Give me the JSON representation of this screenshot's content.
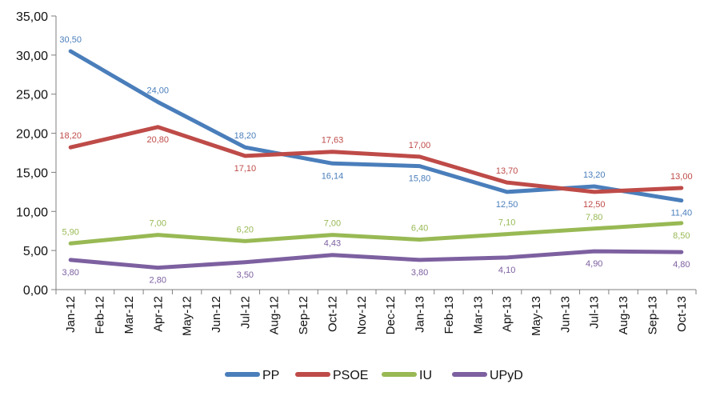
{
  "chart_data": {
    "type": "line",
    "title": "",
    "xlabel": "",
    "ylabel": "",
    "ylim": [
      0,
      35
    ],
    "yticks": [
      "0,00",
      "5,00",
      "10,00",
      "15,00",
      "20,00",
      "25,00",
      "30,00",
      "35,00"
    ],
    "grid": false,
    "legend_position": "bottom",
    "categories": [
      "Jan-12",
      "Feb-12",
      "Mar-12",
      "Apr-12",
      "May-12",
      "Jun-12",
      "Jul-12",
      "Aug-12",
      "Sep-12",
      "Oct-12",
      "Nov-12",
      "Dec-12",
      "Jan-13",
      "Feb-13",
      "Mar-13",
      "Apr-13",
      "May-13",
      "Jun-13",
      "Jul-13",
      "Aug-13",
      "Sep-13",
      "Oct-13"
    ],
    "series": [
      {
        "name": "PP",
        "color": "#4a7ebb",
        "points": [
          {
            "i": 0,
            "v": 30.5,
            "label": "30,50",
            "pos": "above"
          },
          {
            "i": 3,
            "v": 24.0,
            "label": "24,00",
            "pos": "above"
          },
          {
            "i": 6,
            "v": 18.2,
            "label": "18,20",
            "pos": "above"
          },
          {
            "i": 9,
            "v": 16.14,
            "label": "16,14",
            "pos": "below"
          },
          {
            "i": 12,
            "v": 15.8,
            "label": "15,80",
            "pos": "below"
          },
          {
            "i": 15,
            "v": 12.5,
            "label": "12,50",
            "pos": "below"
          },
          {
            "i": 18,
            "v": 13.2,
            "label": "13,20",
            "pos": "above"
          },
          {
            "i": 21,
            "v": 11.4,
            "label": "11,40",
            "pos": "below"
          }
        ]
      },
      {
        "name": "PSOE",
        "color": "#be4b48",
        "points": [
          {
            "i": 0,
            "v": 18.2,
            "label": "18,20",
            "pos": "above"
          },
          {
            "i": 3,
            "v": 20.8,
            "label": "20,80",
            "pos": "below"
          },
          {
            "i": 6,
            "v": 17.1,
            "label": "17,10",
            "pos": "below"
          },
          {
            "i": 9,
            "v": 17.63,
            "label": "17,63",
            "pos": "above"
          },
          {
            "i": 12,
            "v": 17.0,
            "label": "17,00",
            "pos": "above"
          },
          {
            "i": 15,
            "v": 13.7,
            "label": "13,70",
            "pos": "above"
          },
          {
            "i": 18,
            "v": 12.5,
            "label": "12,50",
            "pos": "below"
          },
          {
            "i": 21,
            "v": 13.0,
            "label": "13,00",
            "pos": "above"
          }
        ]
      },
      {
        "name": "IU",
        "color": "#98b954",
        "points": [
          {
            "i": 0,
            "v": 5.9,
            "label": "5,90",
            "pos": "above"
          },
          {
            "i": 3,
            "v": 7.0,
            "label": "7,00",
            "pos": "above"
          },
          {
            "i": 6,
            "v": 6.2,
            "label": "6,20",
            "pos": "above"
          },
          {
            "i": 9,
            "v": 7.0,
            "label": "7,00",
            "pos": "above"
          },
          {
            "i": 12,
            "v": 6.4,
            "label": "6,40",
            "pos": "above"
          },
          {
            "i": 15,
            "v": 7.1,
            "label": "7,10",
            "pos": "above"
          },
          {
            "i": 18,
            "v": 7.8,
            "label": "7,80",
            "pos": "above"
          },
          {
            "i": 21,
            "v": 8.5,
            "label": "8,50",
            "pos": "below"
          }
        ]
      },
      {
        "name": "UPyD",
        "color": "#7d60a0",
        "points": [
          {
            "i": 0,
            "v": 3.8,
            "label": "3,80",
            "pos": "below"
          },
          {
            "i": 3,
            "v": 2.8,
            "label": "2,80",
            "pos": "below"
          },
          {
            "i": 6,
            "v": 3.5,
            "label": "3,50",
            "pos": "below"
          },
          {
            "i": 9,
            "v": 4.43,
            "label": "4,43",
            "pos": "above"
          },
          {
            "i": 12,
            "v": 3.8,
            "label": "3,80",
            "pos": "below"
          },
          {
            "i": 15,
            "v": 4.1,
            "label": "4,10",
            "pos": "below"
          },
          {
            "i": 18,
            "v": 4.9,
            "label": "4,90",
            "pos": "below"
          },
          {
            "i": 21,
            "v": 4.8,
            "label": "4,80",
            "pos": "below"
          }
        ]
      }
    ]
  }
}
